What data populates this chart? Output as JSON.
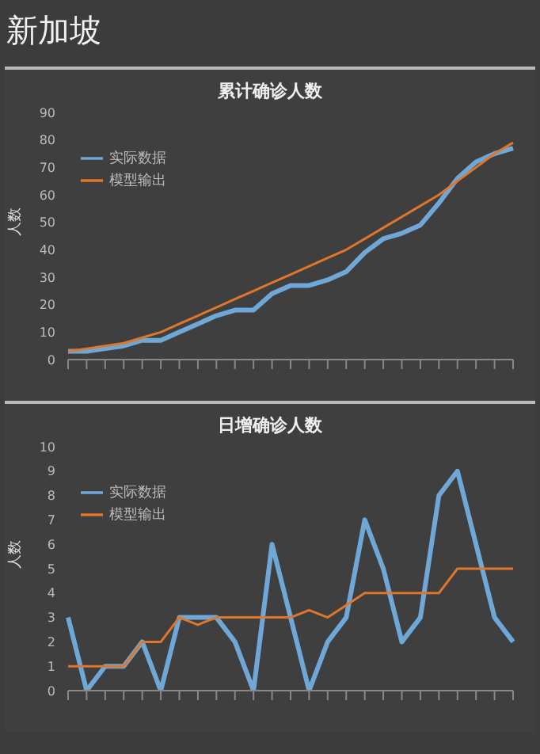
{
  "chart_data": [
    {
      "type": "line",
      "annotations": [
        "新加坡"
      ],
      "title": "累计确诊人数",
      "ylabel": "人数",
      "categories": [
        null,
        null,
        null,
        null,
        null,
        null,
        null,
        null,
        null,
        null,
        null,
        null,
        null,
        null,
        null,
        null,
        null,
        null,
        null,
        null,
        null,
        null,
        null,
        null,
        null
      ],
      "series": [
        {
          "name": "实际数据",
          "color": "#6fa8d6",
          "values": [
            3,
            3,
            4,
            5,
            7,
            7,
            10,
            13,
            16,
            18,
            18,
            24,
            27,
            27,
            29,
            32,
            39,
            44,
            46,
            49,
            57,
            66,
            72,
            75,
            77
          ]
        },
        {
          "name": "模型输出",
          "color": "#e0762c",
          "values": [
            3,
            4,
            5,
            6,
            8,
            10,
            13,
            16,
            19,
            22,
            25,
            28,
            31,
            34,
            37,
            40,
            44,
            48,
            52,
            56,
            60,
            65,
            70,
            75,
            79
          ]
        }
      ],
      "ylim": [
        0,
        90
      ],
      "yticks": [
        0,
        10,
        20,
        30,
        40,
        50,
        60,
        70,
        80,
        90
      ],
      "grid": false,
      "legend": "top left",
      "marker": "none",
      "line_style": "solid"
    },
    {
      "type": "line",
      "title": "日增确诊人数",
      "ylabel": "人数",
      "categories": [
        null,
        null,
        null,
        null,
        null,
        null,
        null,
        null,
        null,
        null,
        null,
        null,
        null,
        null,
        null,
        null,
        null,
        null,
        null,
        null,
        null,
        null,
        null,
        null,
        null
      ],
      "series": [
        {
          "name": "实际数据",
          "color": "#6fa8d6",
          "values": [
            3,
            0,
            1,
            1,
            2,
            0,
            3,
            3,
            3,
            2,
            0,
            6,
            3,
            0,
            2,
            3,
            7,
            5,
            2,
            3,
            8,
            9,
            6,
            3,
            2
          ]
        },
        {
          "name": "模型输出",
          "color": "#e0762c",
          "values": [
            1,
            1,
            1,
            1,
            2,
            2,
            3,
            2.7,
            3,
            3,
            3,
            3,
            3,
            3.3,
            3,
            3.5,
            4,
            4,
            4,
            4,
            4,
            5,
            5,
            5,
            5
          ]
        }
      ],
      "ylim": [
        0,
        10
      ],
      "yticks": [
        0,
        1,
        2,
        3,
        4,
        5,
        6,
        7,
        8,
        9,
        10
      ],
      "grid": false,
      "legend": "top left",
      "marker": "none",
      "line_style": "solid"
    }
  ]
}
